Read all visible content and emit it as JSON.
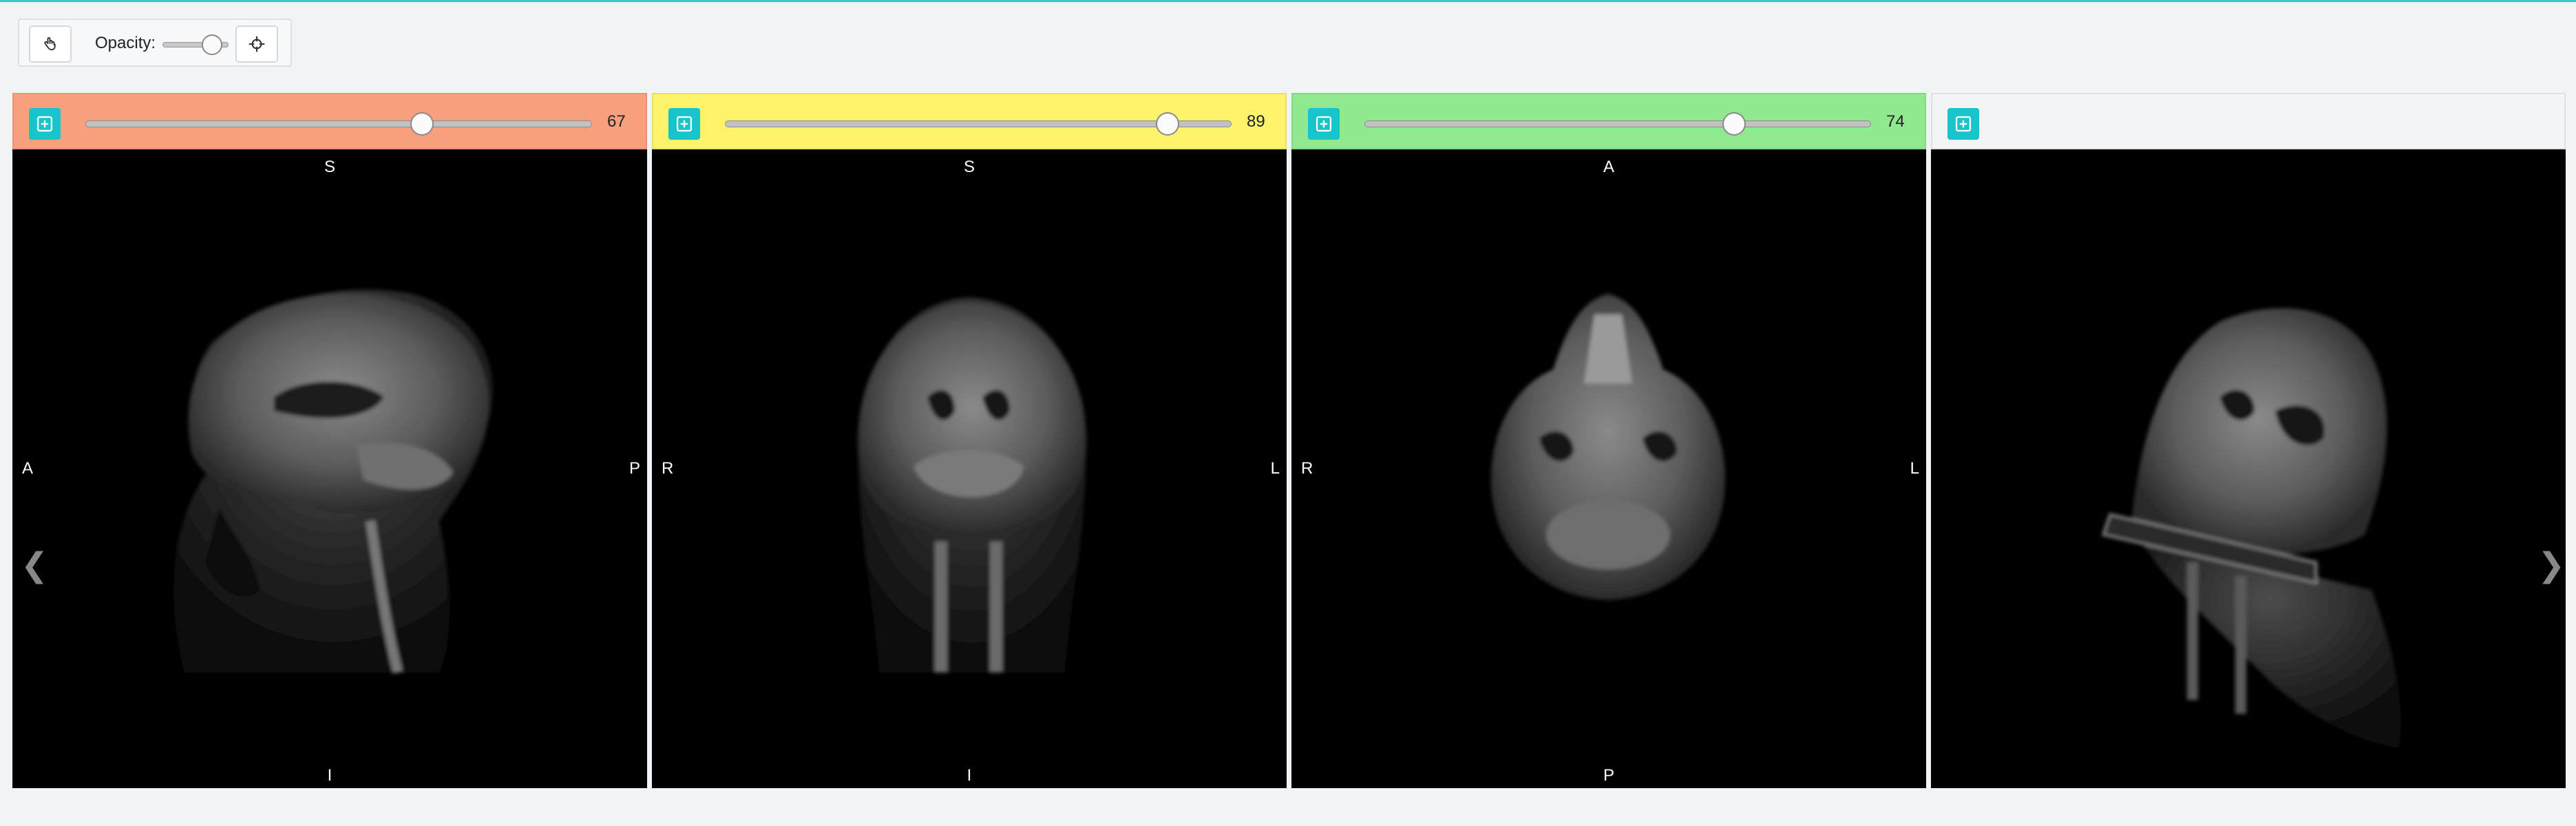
{
  "toolbar": {
    "pan_icon": "hand-pointer-icon",
    "opacity_label": "Opacity:",
    "opacity_value": 0.75,
    "crosshair_icon": "crosshair-icon"
  },
  "viewports": [
    {
      "id": "sagittal",
      "header_color": "#f8a07d",
      "slice_value": "67",
      "slider_fraction": 0.665,
      "orientation": {
        "top": "S",
        "bottom": "I",
        "left": "A",
        "right": "P"
      }
    },
    {
      "id": "coronal",
      "header_color": "#fcf36a",
      "slice_value": "89",
      "slider_fraction": 0.875,
      "orientation": {
        "top": "S",
        "bottom": "I",
        "left": "R",
        "right": "L"
      }
    },
    {
      "id": "axial",
      "header_color": "#90e98e",
      "slice_value": "74",
      "slider_fraction": 0.73,
      "orientation": {
        "top": "A",
        "bottom": "P",
        "left": "R",
        "right": "L"
      }
    },
    {
      "id": "3d",
      "header_color": "#f3f4f6",
      "slice_value": "",
      "orientation": {
        "top": "",
        "bottom": "",
        "left": "",
        "right": ""
      }
    }
  ],
  "navigation": {
    "prev_arrow": "❮",
    "next_arrow": "❯"
  }
}
